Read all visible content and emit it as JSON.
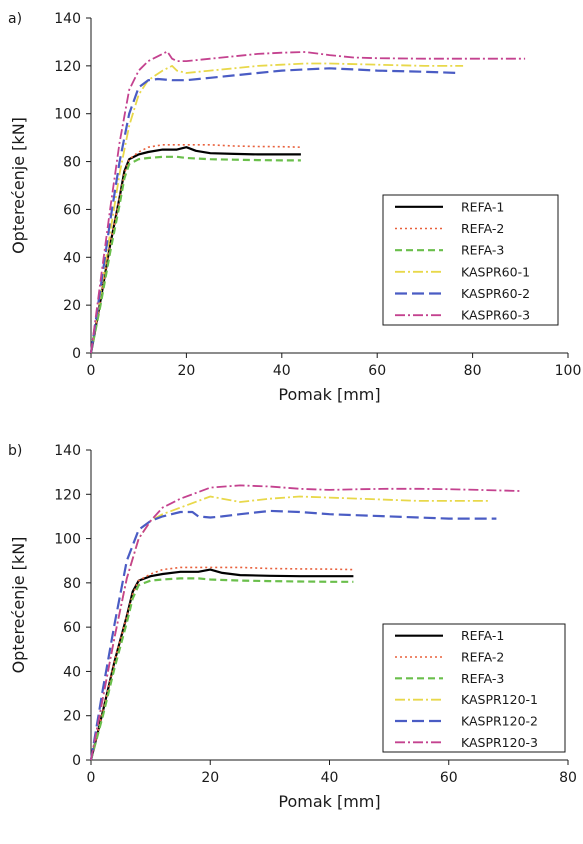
{
  "chart_data": [
    {
      "type": "line",
      "panel_label": "a)",
      "xlabel": "Pomak [mm]",
      "ylabel": "Opterećenje [kN]",
      "xlim": [
        0,
        100
      ],
      "ylim": [
        0,
        140
      ],
      "xticks": [
        0,
        20,
        40,
        60,
        80,
        100
      ],
      "yticks": [
        0,
        20,
        40,
        60,
        80,
        100,
        120,
        140
      ],
      "grid": false,
      "legend_position": "lower-right",
      "series": [
        {
          "name": "REFA-1",
          "color": "#000000",
          "dash": "",
          "width": 2.2,
          "x": [
            0,
            2,
            4,
            6,
            7,
            8,
            10,
            12,
            15,
            18,
            20,
            22,
            25,
            30,
            35,
            40,
            44
          ],
          "y": [
            0,
            22,
            45,
            65,
            76,
            81,
            83,
            84,
            85,
            85,
            86,
            84.5,
            83.5,
            83.2,
            83,
            83,
            83
          ]
        },
        {
          "name": "REFA-2",
          "color": "#e8603c",
          "dash": "2,3",
          "width": 1.6,
          "x": [
            0,
            2,
            4,
            6,
            7,
            8,
            10,
            12,
            15,
            20,
            25,
            30,
            35,
            40,
            44
          ],
          "y": [
            0,
            22,
            45,
            65,
            75,
            81,
            84,
            86,
            87,
            87,
            87,
            86.5,
            86.3,
            86.2,
            86
          ]
        },
        {
          "name": "REFA-3",
          "color": "#6abf4b",
          "dash": "7,4",
          "width": 2.2,
          "x": [
            0,
            2,
            4,
            6,
            7,
            8,
            10,
            12,
            15,
            18,
            20,
            25,
            30,
            35,
            40,
            44
          ],
          "y": [
            0,
            20,
            42,
            62,
            73,
            79,
            81,
            81.5,
            82,
            82,
            81.5,
            81,
            80.8,
            80.6,
            80.5,
            80.5
          ]
        },
        {
          "name": "KASPR60-1",
          "color": "#e8d84a",
          "dash": "10,3,2,3",
          "width": 1.8,
          "x": [
            0,
            2,
            4,
            6,
            8,
            10,
            12,
            15,
            17,
            18,
            20,
            25,
            30,
            35,
            40,
            45,
            50,
            60,
            70,
            78
          ],
          "y": [
            0,
            25,
            50,
            75,
            95,
            108,
            114,
            118,
            120,
            118,
            117,
            118,
            119,
            120,
            120.5,
            121,
            121,
            120.5,
            120,
            120
          ]
        },
        {
          "name": "KASPR60-2",
          "color": "#4a5cc4",
          "dash": "12,5",
          "width": 2.2,
          "x": [
            0,
            2,
            4,
            6,
            8,
            10,
            12,
            14,
            17,
            20,
            25,
            30,
            35,
            40,
            45,
            50,
            55,
            60,
            70,
            77
          ],
          "y": [
            0,
            27,
            55,
            80,
            100,
            111,
            114,
            114.5,
            114,
            114,
            115,
            116,
            117,
            118,
            118.5,
            119,
            118.5,
            118,
            117.5,
            117
          ]
        },
        {
          "name": "KASPR60-3",
          "color": "#c4428f",
          "dash": "10,3,2,3",
          "width": 1.8,
          "x": [
            0,
            2,
            4,
            6,
            8,
            10,
            12,
            14,
            16,
            17,
            18,
            20,
            25,
            30,
            35,
            40,
            45,
            50,
            55,
            60,
            70,
            80,
            91
          ],
          "y": [
            0,
            30,
            60,
            88,
            110,
            118,
            122,
            124,
            126,
            123,
            122,
            122,
            123,
            124,
            125,
            125.5,
            125.8,
            124.5,
            123.5,
            123.2,
            123,
            123,
            123
          ]
        }
      ]
    },
    {
      "type": "line",
      "panel_label": "b)",
      "xlabel": "Pomak [mm]",
      "ylabel": "Opterećenje [kN]",
      "xlim": [
        0,
        80
      ],
      "ylim": [
        0,
        140
      ],
      "xticks": [
        0,
        20,
        40,
        60,
        80
      ],
      "yticks": [
        0,
        20,
        40,
        60,
        80,
        100,
        120,
        140
      ],
      "grid": false,
      "legend_position": "lower-right",
      "series": [
        {
          "name": "REFA-1",
          "color": "#000000",
          "dash": "",
          "width": 2.2,
          "x": [
            0,
            2,
            4,
            6,
            7,
            8,
            10,
            12,
            15,
            18,
            20,
            22,
            25,
            30,
            35,
            40,
            44
          ],
          "y": [
            0,
            22,
            45,
            65,
            76,
            81,
            83,
            84,
            85,
            85,
            86,
            84.5,
            83.5,
            83.2,
            83,
            83,
            83
          ]
        },
        {
          "name": "REFA-2",
          "color": "#e8603c",
          "dash": "2,3",
          "width": 1.6,
          "x": [
            0,
            2,
            4,
            6,
            7,
            8,
            10,
            12,
            15,
            20,
            25,
            30,
            35,
            40,
            44
          ],
          "y": [
            0,
            22,
            45,
            65,
            75,
            81,
            84,
            86,
            87,
            87,
            87,
            86.5,
            86.3,
            86.2,
            86
          ]
        },
        {
          "name": "REFA-3",
          "color": "#6abf4b",
          "dash": "7,4",
          "width": 2.2,
          "x": [
            0,
            2,
            4,
            6,
            7,
            8,
            10,
            12,
            15,
            18,
            20,
            25,
            30,
            35,
            40,
            44
          ],
          "y": [
            0,
            20,
            42,
            62,
            73,
            79,
            81,
            81.5,
            82,
            82,
            81.5,
            81,
            80.8,
            80.6,
            80.5,
            80.5
          ]
        },
        {
          "name": "KASPR120-1",
          "color": "#e8d84a",
          "dash": "10,3,2,3",
          "width": 1.8,
          "x": [
            0,
            2,
            4,
            6,
            8,
            10,
            12,
            15,
            18,
            20,
            22,
            25,
            30,
            35,
            40,
            45,
            50,
            55,
            60,
            67
          ],
          "y": [
            0,
            28,
            56,
            82,
            100,
            108,
            111,
            114,
            117,
            119,
            118,
            116.5,
            118,
            119,
            118.5,
            118,
            117.5,
            117,
            117,
            117
          ]
        },
        {
          "name": "KASPR120-2",
          "color": "#4a5cc4",
          "dash": "12,5",
          "width": 2.2,
          "x": [
            0,
            2,
            4,
            6,
            8,
            10,
            12,
            15,
            17,
            18,
            20,
            22,
            25,
            30,
            35,
            40,
            45,
            50,
            55,
            60,
            68
          ],
          "y": [
            0,
            32,
            62,
            90,
            104,
            108,
            110,
            112,
            112,
            110,
            109.5,
            110,
            111,
            112.5,
            112,
            111,
            110.5,
            110,
            109.5,
            109,
            109
          ]
        },
        {
          "name": "KASPR120-3",
          "color": "#c4428f",
          "dash": "10,3,2,3",
          "width": 1.8,
          "x": [
            0,
            2,
            4,
            6,
            8,
            10,
            12,
            15,
            18,
            20,
            25,
            30,
            35,
            40,
            45,
            50,
            55,
            60,
            65,
            72
          ],
          "y": [
            0,
            28,
            56,
            82,
            100,
            108,
            114,
            118,
            121,
            123,
            124,
            123.5,
            122.5,
            122,
            122.3,
            122.5,
            122.5,
            122.3,
            122,
            121.5
          ]
        }
      ]
    }
  ]
}
